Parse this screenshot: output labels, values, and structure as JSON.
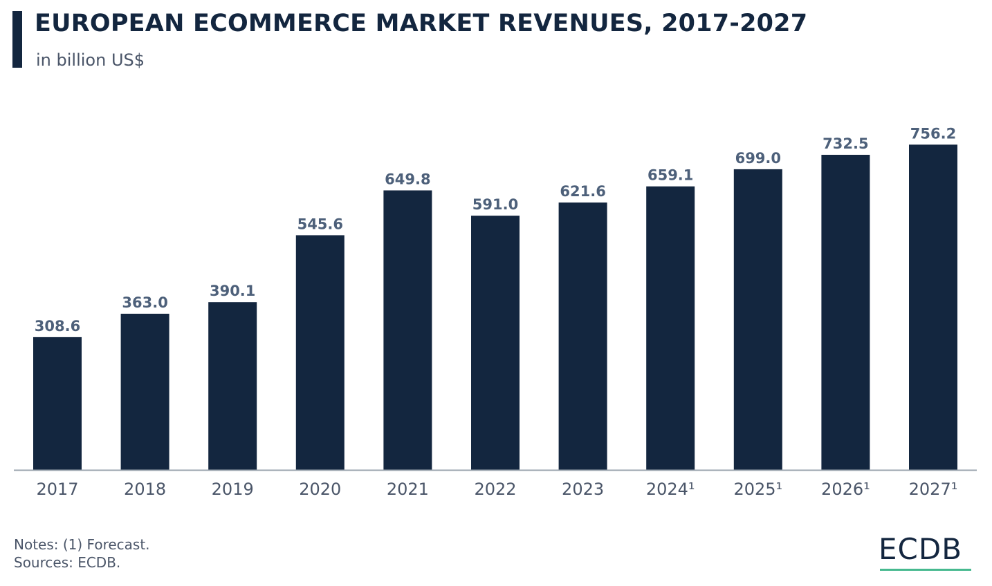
{
  "header": {
    "title": "EUROPEAN ECOMMERCE MARKET REVENUES, 2017-2027",
    "subtitle": "in billion US$"
  },
  "footer": {
    "notes": "Notes: (1) Forecast.",
    "sources": "Sources: ECDB.",
    "logo_text": "ECDB"
  },
  "colors": {
    "bar": "#13263f",
    "value_label": "#4d607a",
    "tick_label": "#4a5568",
    "axis": "#9aa3ad",
    "logo_accent": "#46b98f"
  },
  "chart_data": {
    "type": "bar",
    "title": "EUROPEAN ECOMMERCE MARKET REVENUES, 2017-2027",
    "subtitle": "in billion US$",
    "xlabel": "",
    "ylabel": "",
    "categories": [
      "2017",
      "2018",
      "2019",
      "2020",
      "2021",
      "2022",
      "2023",
      "2024¹",
      "2025¹",
      "2026¹",
      "2027¹"
    ],
    "values": [
      308.6,
      363.0,
      390.1,
      545.6,
      649.8,
      591.0,
      621.6,
      659.1,
      699.0,
      732.5,
      756.2
    ],
    "value_labels": [
      "308.6",
      "363.0",
      "390.1",
      "545.6",
      "649.8",
      "591.0",
      "621.6",
      "659.1",
      "699.0",
      "732.5",
      "756.2"
    ],
    "ylim": [
      0,
      800
    ],
    "grid": false,
    "legend": "none"
  }
}
